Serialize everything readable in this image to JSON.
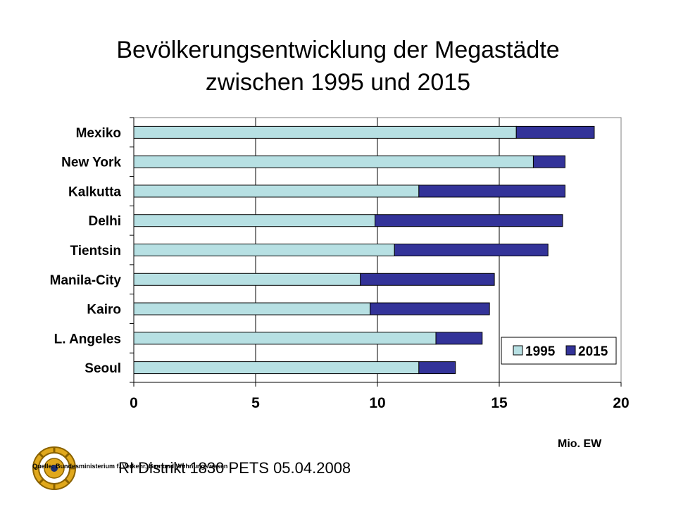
{
  "page": {
    "title_line1": "Bevölkerungsentwicklung der Megastädte",
    "title_line2": "zwischen 1995 und 2015",
    "unit_label": "Mio. EW",
    "footer": "RI Distrikt 1830 PETS 05.04.2008",
    "source": "Quelle: Bundesministerium f. Verkehr, Bau und Wohnungswesen",
    "logo_icon": "rotary-wheel-icon"
  },
  "colors": {
    "series_1995": "#b7e0e3",
    "series_2015": "#333399"
  },
  "chart_data": {
    "type": "bar",
    "orientation": "horizontal",
    "stacked": true,
    "categories": [
      "Mexiko",
      "New York",
      "Kalkutta",
      "Delhi",
      "Tientsin",
      "Manila-City",
      "Kairo",
      "L. Angeles",
      "Seoul"
    ],
    "series": [
      {
        "name": "1995",
        "values": [
          15.7,
          16.4,
          11.7,
          9.9,
          10.7,
          9.3,
          9.7,
          12.4,
          11.7
        ]
      },
      {
        "name": "2015",
        "values": [
          3.2,
          1.3,
          6.0,
          7.7,
          6.3,
          5.5,
          4.9,
          1.9,
          1.5
        ]
      }
    ],
    "xlim": [
      0,
      20
    ],
    "xticks": [
      "0",
      "5",
      "10",
      "15",
      "20"
    ],
    "grid": true,
    "legend": "bottom-right"
  }
}
